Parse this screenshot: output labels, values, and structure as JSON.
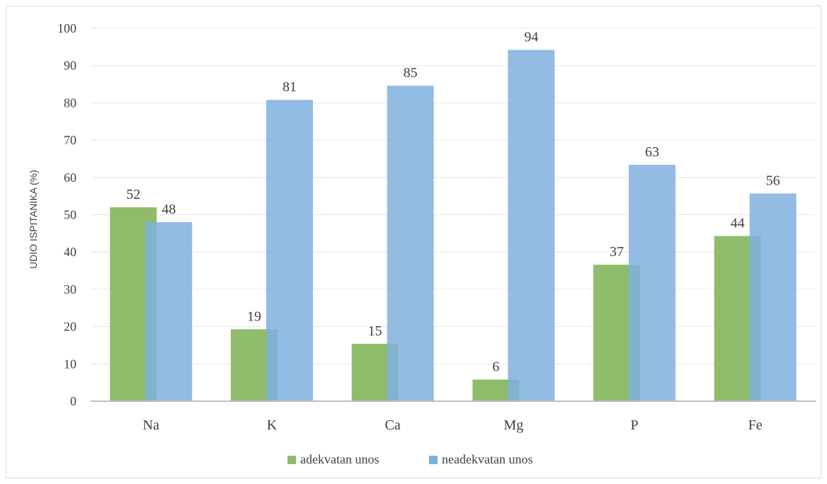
{
  "chart_data": {
    "type": "bar",
    "categories": [
      "Na",
      "K",
      "Ca",
      "Mg",
      "P",
      "Fe"
    ],
    "series": [
      {
        "name": "adekvatan unos",
        "color": "#8fbc6a",
        "values": [
          52,
          19,
          15,
          6,
          37,
          44
        ],
        "labels": [
          "52",
          "19",
          "15",
          "6",
          "37",
          "44"
        ],
        "plot_values": [
          52,
          19.3,
          15.4,
          5.8,
          36.6,
          44.3
        ]
      },
      {
        "name": "neadekvatan unos",
        "color": "#7fb0df",
        "values": [
          48,
          81,
          85,
          94,
          63,
          56
        ],
        "labels": [
          "48",
          "81",
          "85",
          "94",
          "63",
          "56"
        ],
        "plot_values": [
          48,
          80.8,
          84.6,
          94.2,
          63.4,
          55.7
        ]
      }
    ],
    "title": "",
    "xlabel": "",
    "ylabel": "UDIO ISPITANIKA (%)",
    "ylim": [
      0,
      100
    ],
    "yticks": [
      "0",
      "10",
      "20",
      "30",
      "40",
      "50",
      "60",
      "70",
      "80",
      "90",
      "100"
    ],
    "grid": true,
    "legend": "bottom-center"
  }
}
